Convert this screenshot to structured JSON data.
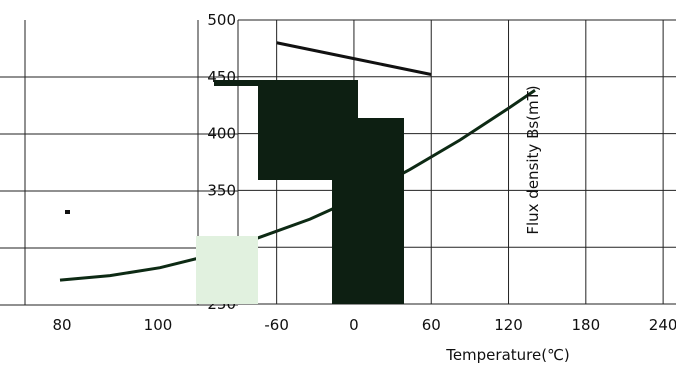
{
  "chart_data": [
    {
      "type": "line",
      "title": "",
      "xlabel": "",
      "ylabel": "",
      "x_ticks": [
        "80",
        "100"
      ],
      "y_ticks": [],
      "series": [
        {
          "values": [
            [
              60,
              272
            ],
            [
              70,
              276
            ],
            [
              80,
              283
            ],
            [
              90,
              294
            ],
            [
              100,
              310
            ],
            [
              110,
              326
            ],
            [
              120,
              346
            ],
            [
              130,
              370
            ],
            [
              140,
              396
            ],
            [
              150,
              425
            ],
            [
              155,
              440
            ]
          ]
        }
      ],
      "legend": "none",
      "grid": true
    },
    {
      "type": "line",
      "title": "",
      "xlabel": "Temperature(℃)",
      "ylabel": "Flux density Bs(mT)",
      "x_ticks": [
        "-60",
        "0",
        "60",
        "120",
        "180",
        "240"
      ],
      "y_ticks": [
        "250",
        "300",
        "350",
        "400",
        "450",
        "500"
      ],
      "xlim": [
        -90,
        250
      ],
      "ylim": [
        250,
        500
      ],
      "series": [
        {
          "values": [
            [
              -60,
              480
            ],
            [
              0,
              466
            ],
            [
              60,
              452
            ]
          ]
        }
      ],
      "legend": "none",
      "grid": true
    }
  ]
}
